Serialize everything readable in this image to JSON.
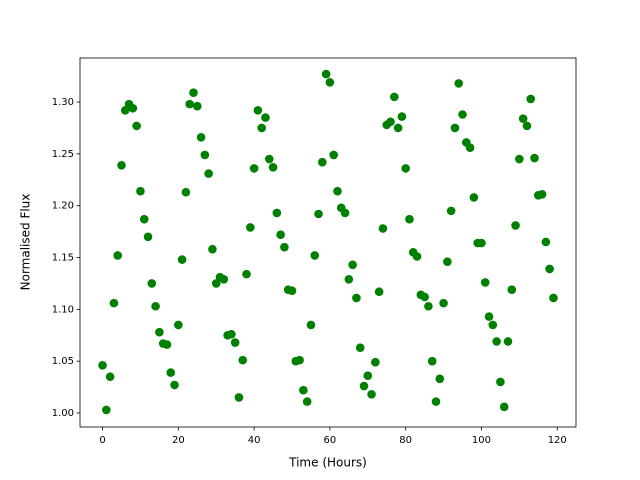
{
  "chart_data": {
    "type": "scatter",
    "x_label": "Time (Hours)",
    "y_label": "Normalised Flux",
    "color": "#008000",
    "x": [
      0,
      1,
      2,
      3,
      4,
      5,
      6,
      7,
      8,
      9,
      10,
      11,
      12,
      13,
      14,
      15,
      16,
      17,
      18,
      19,
      20,
      21,
      22,
      23,
      24,
      25,
      26,
      27,
      28,
      29,
      30,
      31,
      32,
      33,
      34,
      35,
      36,
      37,
      38,
      39,
      40,
      41,
      42,
      43,
      44,
      45,
      46,
      47,
      48,
      49,
      50,
      51,
      52,
      53,
      54,
      55,
      56,
      57,
      58,
      59,
      60,
      61,
      62,
      63,
      64,
      65,
      66,
      67,
      68,
      69,
      70,
      71,
      72,
      73,
      74,
      75,
      76,
      77,
      78,
      79,
      80,
      81,
      82,
      83,
      84,
      85,
      86,
      87,
      88,
      89,
      90,
      91,
      92,
      93,
      94,
      95,
      96,
      97,
      98,
      99,
      100,
      101,
      102,
      103,
      104,
      105,
      106,
      107,
      108,
      109,
      110,
      111,
      112,
      113,
      114,
      115,
      116,
      117,
      118,
      119
    ],
    "values": [
      1.046,
      1.003,
      1.035,
      1.106,
      1.152,
      1.239,
      1.292,
      1.298,
      1.294,
      1.277,
      1.214,
      1.187,
      1.17,
      1.125,
      1.103,
      1.078,
      1.067,
      1.066,
      1.039,
      1.027,
      1.085,
      1.148,
      1.213,
      1.298,
      1.309,
      1.296,
      1.266,
      1.249,
      1.231,
      1.158,
      1.125,
      1.131,
      1.129,
      1.075,
      1.076,
      1.068,
      1.015,
      1.051,
      1.134,
      1.179,
      1.236,
      1.292,
      1.275,
      1.285,
      1.245,
      1.237,
      1.193,
      1.172,
      1.16,
      1.119,
      1.118,
      1.05,
      1.051,
      1.022,
      1.011,
      1.085,
      1.152,
      1.192,
      1.242,
      1.327,
      1.319,
      1.249,
      1.214,
      1.198,
      1.193,
      1.129,
      1.143,
      1.111,
      1.063,
      1.026,
      1.036,
      1.018,
      1.049,
      1.117,
      1.178,
      1.278,
      1.281,
      1.305,
      1.275,
      1.286,
      1.236,
      1.187,
      1.155,
      1.151,
      1.114,
      1.112,
      1.103,
      1.05,
      1.011,
      1.033,
      1.106,
      1.146,
      1.195,
      1.275,
      1.318,
      1.288,
      1.261,
      1.256,
      1.208,
      1.164,
      1.164,
      1.126,
      1.093,
      1.085,
      1.069,
      1.03,
      1.006,
      1.069,
      1.119,
      1.181,
      1.245,
      1.284,
      1.277,
      1.303,
      1.246,
      1.21,
      1.211,
      1.165,
      1.139,
      1.111
    ],
    "xlim": [
      -5.95,
      124.95
    ],
    "ylim": [
      0.9865,
      1.3425
    ],
    "xticks": [
      0,
      20,
      40,
      60,
      80,
      100,
      120
    ],
    "yticks": [
      {
        "value": 1,
        "label": "1.00"
      },
      {
        "value": 1.05,
        "label": "1.05"
      },
      {
        "value": 1.1,
        "label": "1.10"
      },
      {
        "value": 1.15,
        "label": "1.15"
      },
      {
        "value": 1.2,
        "label": "1.20"
      },
      {
        "value": 1.25,
        "label": "1.25"
      },
      {
        "value": 1.3,
        "label": "1.30"
      }
    ],
    "grid": false
  }
}
